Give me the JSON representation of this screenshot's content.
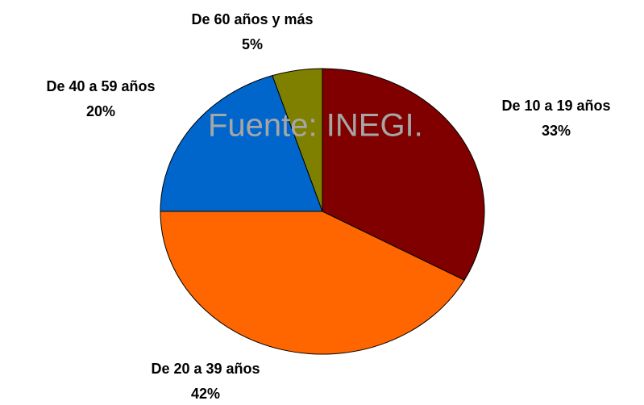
{
  "chart_data": {
    "type": "pie",
    "categories": [
      "De 10 a 19 años",
      "De 20 a 39 años",
      "De 40 a 59 años",
      "De 60 años y más"
    ],
    "values": [
      33,
      42,
      20,
      5
    ],
    "value_labels": [
      "33%",
      "42%",
      "20%",
      "5%"
    ],
    "colors": [
      "#800000",
      "#ff6600",
      "#0066cc",
      "#808000"
    ],
    "annotation": "Fuente: INEGI."
  }
}
